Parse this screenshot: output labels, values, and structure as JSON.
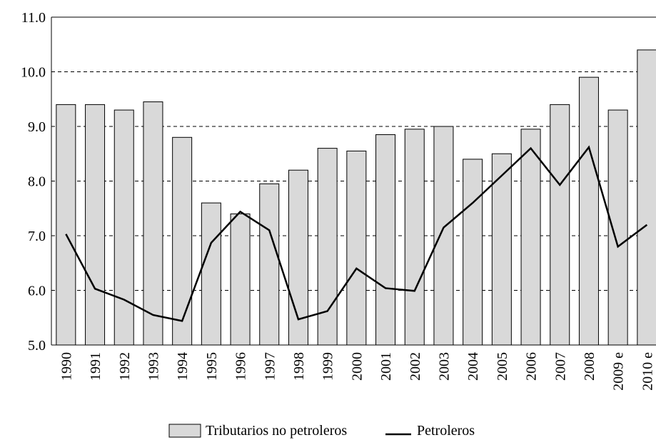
{
  "chart_data": {
    "type": "bar_line",
    "categories": [
      "1990",
      "1991",
      "1992",
      "1993",
      "1994",
      "1995",
      "1996",
      "1997",
      "1998",
      "1999",
      "2000",
      "2001",
      "2002",
      "2003",
      "2004",
      "2005",
      "2006",
      "2007",
      "2008",
      "2009 e",
      "2010 e"
    ],
    "series": [
      {
        "name": "Tributarios no petroleros",
        "type": "bar",
        "color": "#d9d9d9",
        "values": [
          9.4,
          9.4,
          9.3,
          9.45,
          8.8,
          7.6,
          7.4,
          7.95,
          8.2,
          8.6,
          8.55,
          8.85,
          8.95,
          9.0,
          8.4,
          8.5,
          8.95,
          9.4,
          9.9,
          9.3,
          10.4
        ]
      },
      {
        "name": "Petroleros",
        "type": "line",
        "color": "#000000",
        "values": [
          7.03,
          6.03,
          5.83,
          5.55,
          5.44,
          6.87,
          7.44,
          7.1,
          5.47,
          5.62,
          6.4,
          6.04,
          5.99,
          7.15,
          7.6,
          8.1,
          8.6,
          7.93,
          8.62,
          6.8,
          7.2
        ]
      }
    ],
    "ylim": [
      5,
      11
    ],
    "yticks": [
      {
        "value": 5,
        "label": "5.0"
      },
      {
        "value": 6,
        "label": "6.0"
      },
      {
        "value": 7,
        "label": "7.0"
      },
      {
        "value": 8,
        "label": "8.0"
      },
      {
        "value": 9,
        "label": "9.0"
      },
      {
        "value": 10,
        "label": "10.0"
      },
      {
        "value": 11,
        "label": "11.0"
      }
    ],
    "grid": true,
    "legend": "bottom"
  }
}
